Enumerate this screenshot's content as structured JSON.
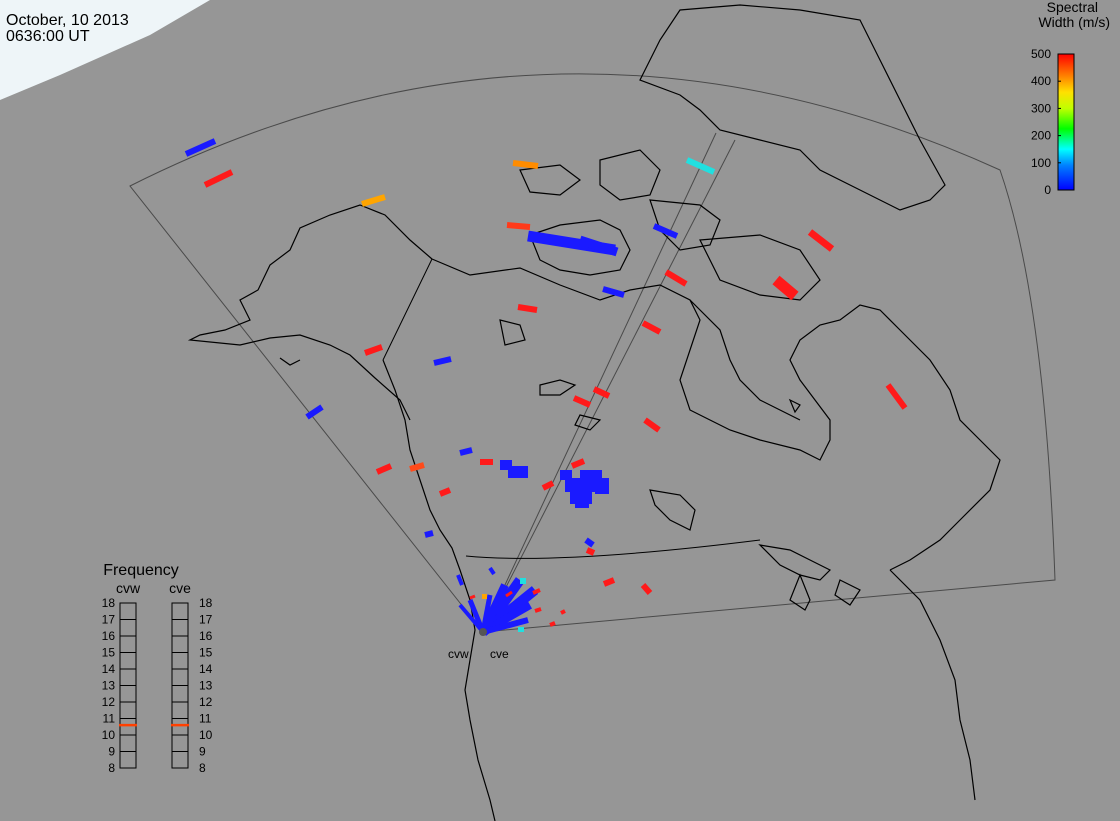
{
  "header": {
    "date": "October, 10 2013",
    "time": "0636:00 UT"
  },
  "colorbar": {
    "title_line1": "Spectral",
    "title_line2": "Width (m/s)",
    "ticks": [
      "500",
      "400",
      "300",
      "200",
      "100",
      "0"
    ],
    "range": [
      0,
      500
    ],
    "colors": [
      "#0000ff",
      "#0080ff",
      "#00ffff",
      "#00ff00",
      "#80ff00",
      "#ffff00",
      "#ff8000",
      "#ff0000"
    ]
  },
  "radars": {
    "west_label": "cvw",
    "east_label": "cve"
  },
  "frequency_panel": {
    "title": "Frequency",
    "left_label": "cvw",
    "right_label": "cve",
    "scale": [
      "18",
      "17",
      "16",
      "15",
      "14",
      "13",
      "12",
      "11",
      "10",
      "9",
      "8"
    ],
    "cvw_value": 10.6,
    "cve_value": 10.6,
    "marker_color": "#ff4000"
  },
  "colors": {
    "background": "#969696",
    "coastline": "#000000",
    "fov_outline": "#4a4a4a",
    "low_width": "#1a1aff",
    "high_width": "#ff1a1a",
    "mid_orange": "#ffa500",
    "mid_cyan": "#20e0e0"
  }
}
